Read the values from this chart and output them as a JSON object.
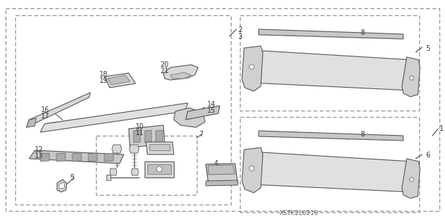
{
  "bg_color": "#ffffff",
  "line_color": "#555555",
  "dashed_color": "#888888",
  "text_color": "#333333",
  "part_fill": "#e8e8e8",
  "part_edge": "#555555",
  "watermark": "XSTK2L0210",
  "fig_w": 6.4,
  "fig_h": 3.19,
  "dpi": 100
}
